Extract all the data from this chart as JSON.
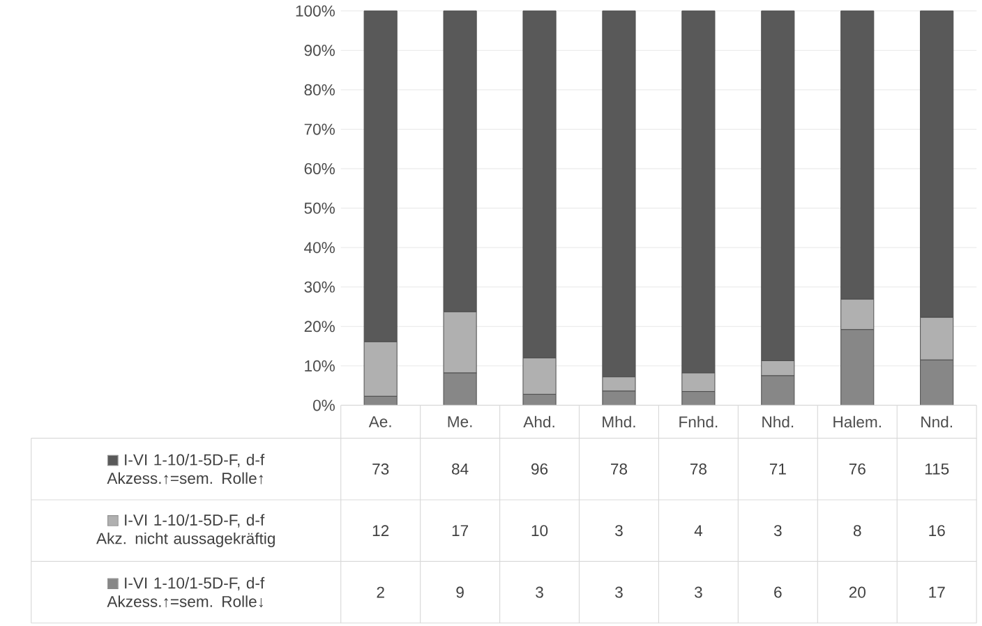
{
  "chart_data": {
    "type": "bar",
    "stacked": true,
    "categories": [
      "Ae.",
      "Me.",
      "Ahd.",
      "Mhd.",
      "Fnhd.",
      "Nhd.",
      "Halem.",
      "Nnd."
    ],
    "series": [
      {
        "name": "I-VI 1-10/1-5D-F, d-f Akzess.↑=sem. Rolle↓",
        "color": "#878787",
        "values": [
          2.3,
          8.2,
          2.8,
          3.6,
          3.5,
          7.5,
          19.2,
          11.5
        ]
      },
      {
        "name": "I-VI 1-10/1-5D-F, d-f Akz. nicht aussagekräftig",
        "color": "#b0b0b0",
        "values": [
          13.8,
          15.5,
          9.2,
          3.6,
          4.7,
          3.8,
          7.7,
          10.8
        ]
      },
      {
        "name": "I-VI 1-10/1-5D-F, d-f Akzess.↑=sem. Rolle↑",
        "color": "#595959",
        "values": [
          83.9,
          76.3,
          88.0,
          92.8,
          91.8,
          88.7,
          73.1,
          77.7
        ]
      }
    ],
    "annotations": [
      "73",
      "84",
      "96",
      "78",
      "78",
      "71",
      "76",
      "115",
      "12",
      "17",
      "10",
      "3",
      "4",
      "3",
      "8",
      "16",
      "2",
      "9",
      "3",
      "3",
      "3",
      "6",
      "20",
      "17"
    ],
    "ylim": [
      0,
      100
    ],
    "yticks": [
      {
        "value": 0,
        "label": "0%"
      },
      {
        "value": 10,
        "label": "10%"
      },
      {
        "value": 20,
        "label": "20%"
      },
      {
        "value": 30,
        "label": "30%"
      },
      {
        "value": 40,
        "label": "40%"
      },
      {
        "value": 50,
        "label": "50%"
      },
      {
        "value": 60,
        "label": "60%"
      },
      {
        "value": 70,
        "label": "70%"
      },
      {
        "value": 80,
        "label": "80%"
      },
      {
        "value": 90,
        "label": "90%"
      },
      {
        "value": 100,
        "label": "100%"
      }
    ],
    "grid": "y",
    "legend": "left"
  }
}
